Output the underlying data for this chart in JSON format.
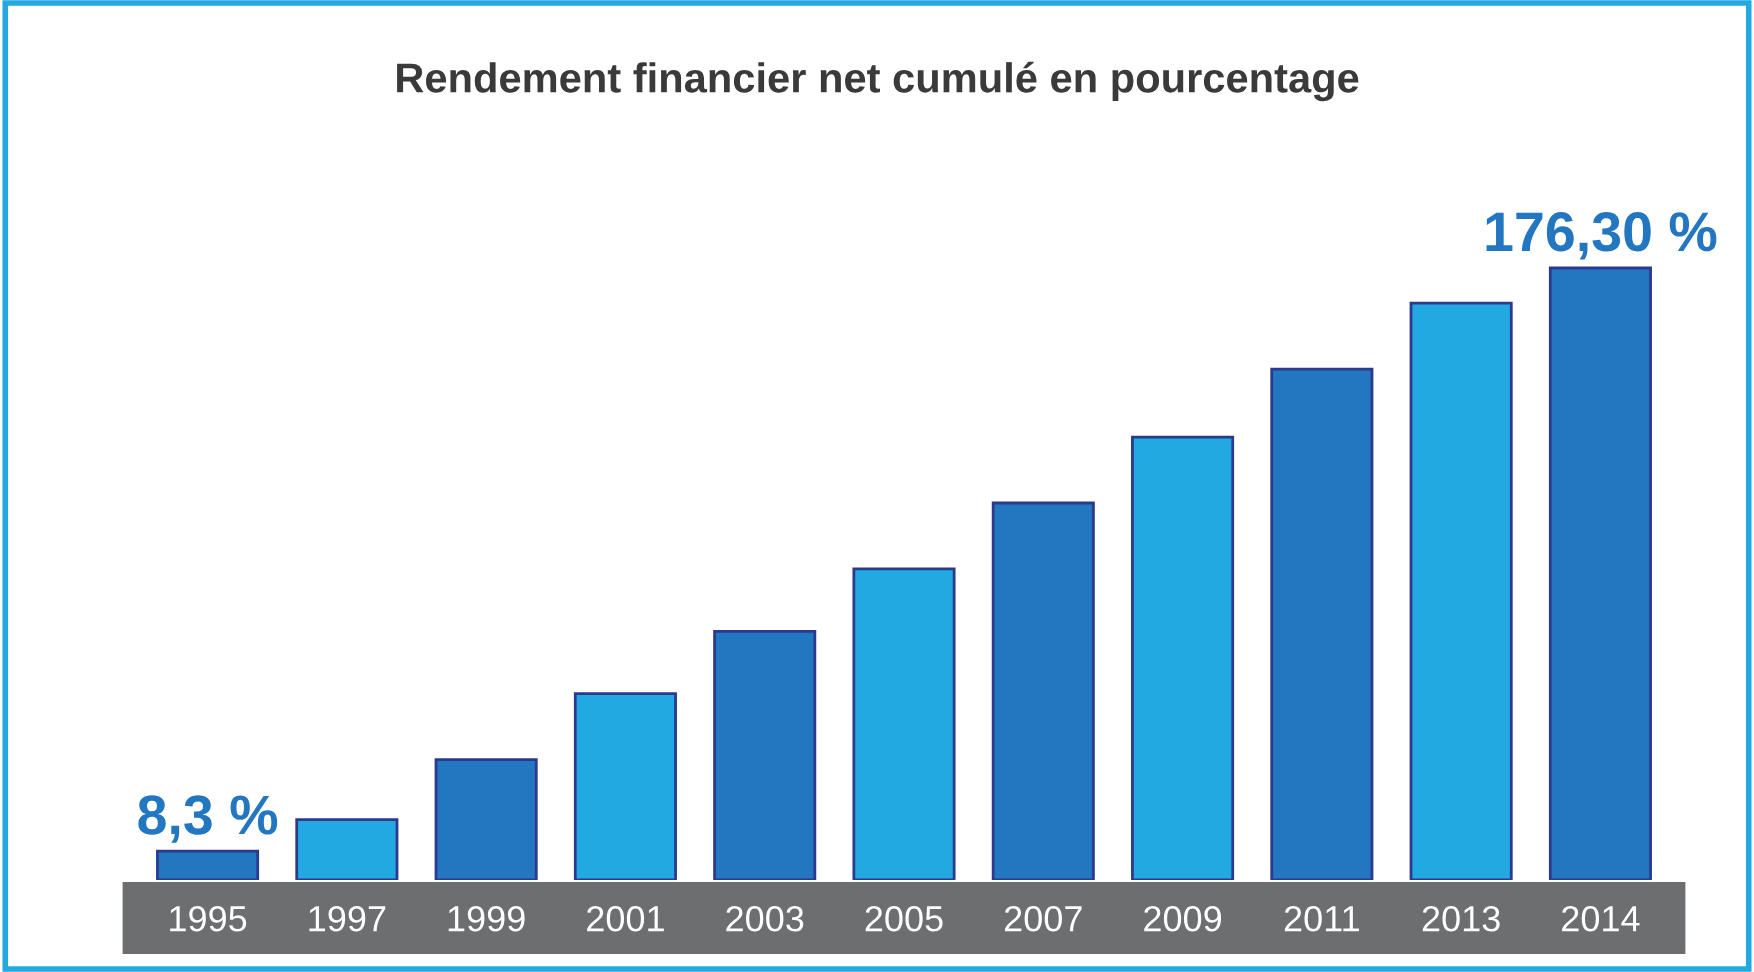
{
  "chart_data": {
    "type": "bar",
    "title": "Rendement financier net cumulé en pourcentage",
    "categories": [
      "1995",
      "1997",
      "1999",
      "2001",
      "2003",
      "2005",
      "2007",
      "2009",
      "2011",
      "2013",
      "2014"
    ],
    "values": [
      8.3,
      17.4,
      34.7,
      53.7,
      71.6,
      89.6,
      108.6,
      127.6,
      147.2,
      166.2,
      176.3
    ],
    "value_labels": [
      "8,3 %",
      null,
      null,
      null,
      null,
      null,
      null,
      null,
      null,
      null,
      "176,30 %"
    ],
    "colors": [
      "#2376c0",
      "#22a9e2",
      "#2376c0",
      "#22a9e2",
      "#2376c0",
      "#22a9e2",
      "#2376c0",
      "#22a9e2",
      "#2376c0",
      "#22a9e2",
      "#2376c0"
    ],
    "tick_labels": "x",
    "grid": false,
    "legend": false
  }
}
